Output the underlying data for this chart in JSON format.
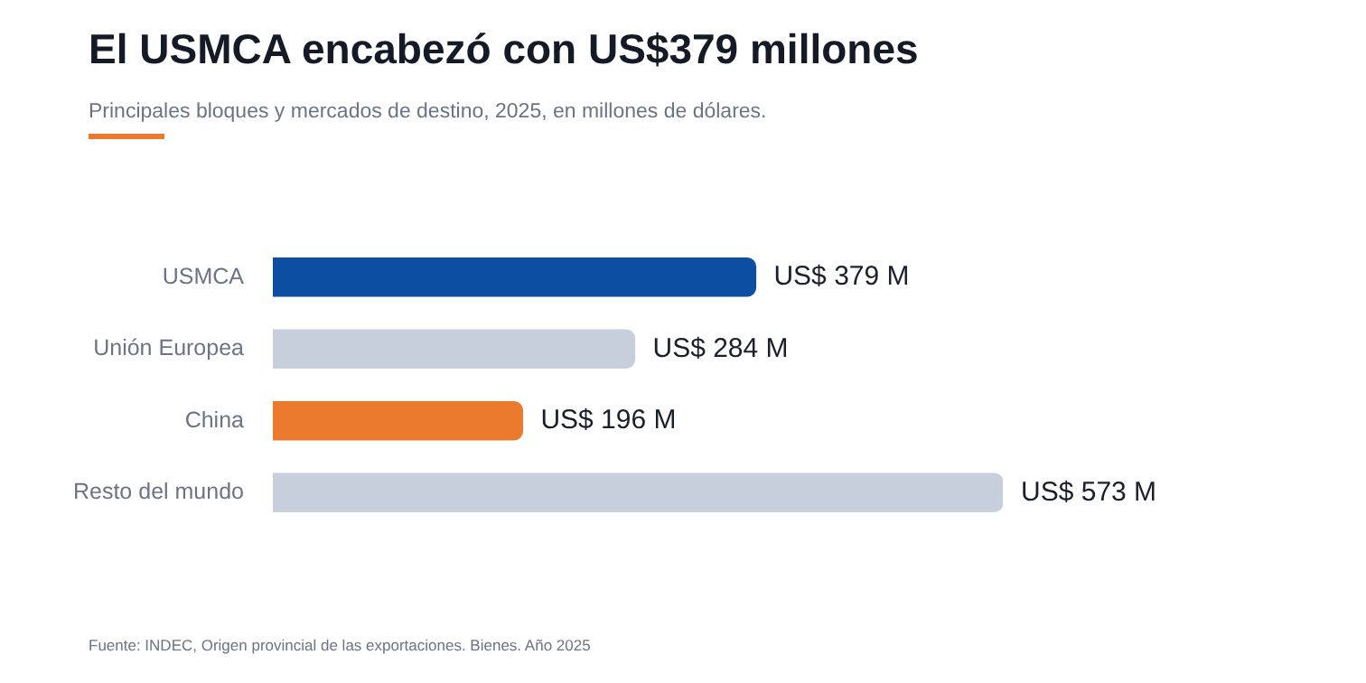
{
  "chart_data": {
    "type": "bar",
    "orientation": "horizontal",
    "title": "El USMCA encabezó con US$379 millones",
    "subtitle": "Principales bloques y mercados de destino, 2025, en millones de dólares.",
    "categories": [
      "USMCA",
      "Unión Europea",
      "China",
      "Resto del mundo"
    ],
    "values": [
      379,
      284,
      196,
      573
    ],
    "colors": [
      "#0b4ea2",
      "#c6cfdb",
      "#ec7a2c",
      "#c6cfdb"
    ],
    "value_labels": [
      "US$ 379 M",
      "US$ 284 M",
      "US$ 196 M",
      "US$ 573 M"
    ],
    "legend": false,
    "annotations": [
      "Fuente: INDEC, Origen provincial de las exportaciones. Bienes. Año 2025"
    ]
  }
}
